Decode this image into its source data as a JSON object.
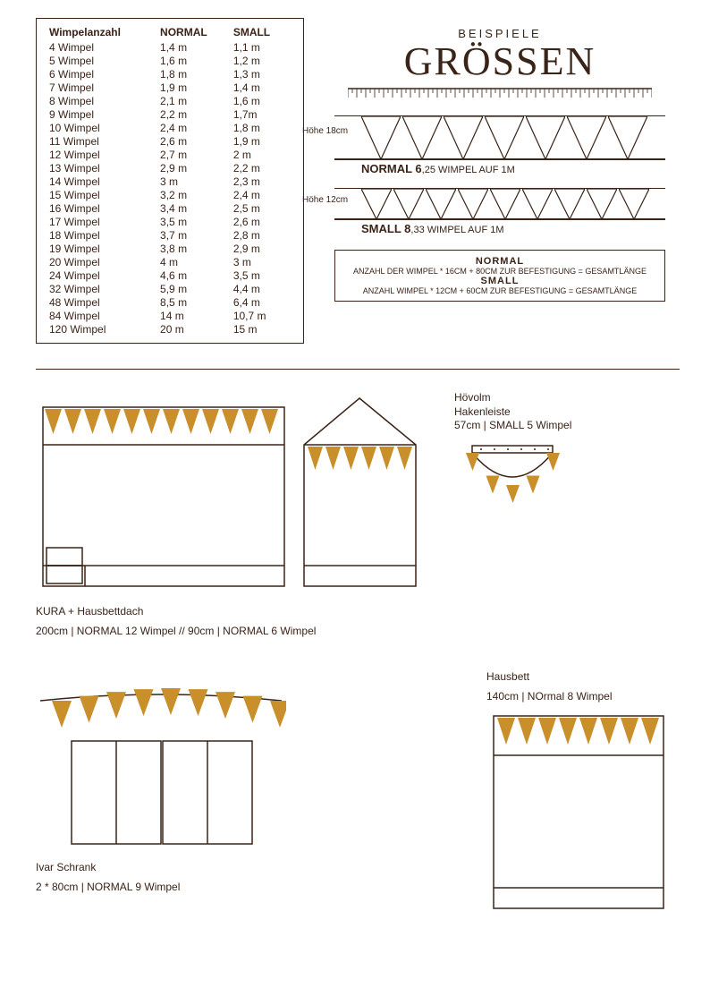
{
  "colors": {
    "ink": "#3a2317",
    "pennant": "#c88f2a",
    "bg": "#ffffff"
  },
  "table": {
    "headers": [
      "Wimpelanzahl",
      "NORMAL",
      "SMALL"
    ],
    "rows": [
      [
        "4 Wimpel",
        "1,4 m",
        "1,1 m"
      ],
      [
        "5 Wimpel",
        "1,6 m",
        "1,2 m"
      ],
      [
        "6 Wimpel",
        "1,8 m",
        "1,3 m"
      ],
      [
        "7 Wimpel",
        "1,9 m",
        "1,4 m"
      ],
      [
        "8 Wimpel",
        "2,1 m",
        "1,6 m"
      ],
      [
        "9 Wimpel",
        "2,2 m",
        "1,7m"
      ],
      [
        "10 Wimpel",
        "2,4 m",
        "1,8 m"
      ],
      [
        "11 Wimpel",
        "2,6 m",
        "1,9 m"
      ],
      [
        "12 Wimpel",
        "2,7 m",
        "2 m"
      ],
      [
        "13 Wimpel",
        "2,9 m",
        "2,2 m"
      ],
      [
        "14 Wimpel",
        "3 m",
        "2,3 m"
      ],
      [
        "15 Wimpel",
        "3,2 m",
        "2,4 m"
      ],
      [
        "16 Wimpel",
        "3,4 m",
        "2,5 m"
      ],
      [
        "17 Wimpel",
        "3,5 m",
        "2,6 m"
      ],
      [
        "18 Wimpel",
        "3,7 m",
        "2,8 m"
      ],
      [
        "19 Wimpel",
        "3,8 m",
        "2,9 m"
      ],
      [
        "20 Wimpel",
        "4 m",
        "3 m"
      ],
      [
        "24 Wimpel",
        "4,6 m",
        "3,5 m"
      ],
      [
        "32 Wimpel",
        "5,9 m",
        "4,4 m"
      ],
      [
        "48 Wimpel",
        "8,5 m",
        "6,4 m"
      ],
      [
        "84 Wimpel",
        "14 m",
        "10,7 m"
      ],
      [
        "120 Wimpel",
        "20 m",
        "15 m"
      ]
    ]
  },
  "title": {
    "over": "BEISPIELE",
    "main": "GRÖSSEN"
  },
  "sample_normal": {
    "height_label": "Höhe\n18cm",
    "count": 7,
    "tri_w": 44,
    "tri_h": 48,
    "caption_big": "NORMAL 6",
    "caption_small": ",25 WIMPEL AUF 1M"
  },
  "sample_small": {
    "height_label": "Höhe\n12cm",
    "count": 9,
    "tri_w": 34,
    "tri_h": 34,
    "caption_big": "SMALL 8",
    "caption_small": ",33 WIMPEL AUF 1M"
  },
  "formula": {
    "t1": "NORMAL",
    "l1": "ANZAHL DER WIMPEL * 16CM + 80CM ZUR BEFESTIGUNG = GESAMTLÄNGE",
    "t2": "SMALL",
    "l2": "ANZAHL WIMPEL * 12CM + 60CM ZUR BEFESTIGUNG = GESAMTLÄNGE"
  },
  "kura": {
    "caption1": "KURA + Hausbettdach",
    "caption2": "200cm | NORMAL 12 Wimpel // 90cm | NORMAL 6 Wimpel",
    "bunting_count": 12,
    "house_bunting_count": 6
  },
  "hovolm": {
    "l1": "Hövolm",
    "l2": "Hakenleiste",
    "l3": "57cm | SMALL 5 Wimpel",
    "count": 5
  },
  "ivar": {
    "caption1": "Ivar Schrank",
    "caption2": "2 * 80cm | NORMAL 9 Wimpel",
    "count": 9
  },
  "hausbett": {
    "caption1": "Hausbett",
    "caption2": "140cm | NOrmal 8 Wimpel",
    "count": 8
  }
}
